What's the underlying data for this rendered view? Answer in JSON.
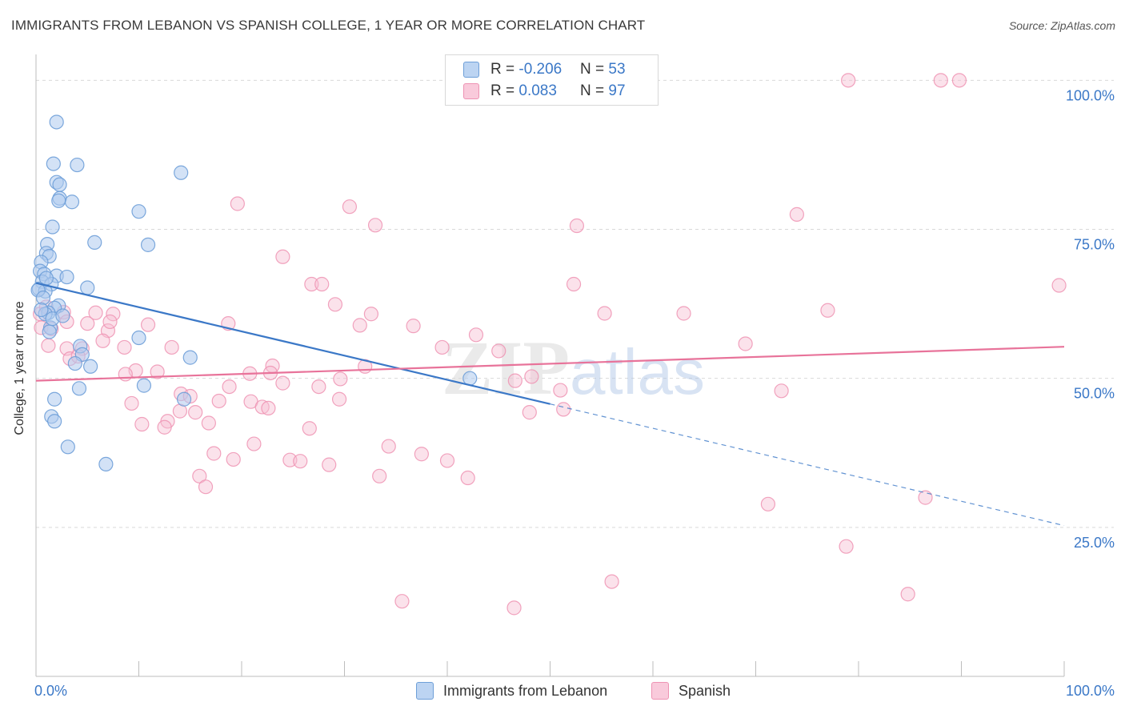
{
  "title": "IMMIGRANTS FROM LEBANON VS SPANISH COLLEGE, 1 YEAR OR MORE CORRELATION CHART",
  "source": "Source: ZipAtlas.com",
  "watermark": {
    "zip": "ZIP",
    "atlas": "atlas"
  },
  "colors": {
    "blue": "#3b78c7",
    "blue_fill": "#aecbef",
    "blue_stroke": "#6e9fd8",
    "pink": "#e8739a",
    "pink_fill": "#f6bfd2",
    "pink_stroke": "#ee93b3",
    "grid": "#d9d9d9",
    "axis_text": "#3b78c7"
  },
  "legend": {
    "rows": [
      {
        "r_label": "R = ",
        "r_value": "-0.206",
        "n_label": "N = ",
        "n_value": "53"
      },
      {
        "r_label": "R = ",
        "r_value": "0.083",
        "n_label": "N = ",
        "n_value": "97"
      }
    ]
  },
  "bottom_legend": [
    {
      "label": "Immigrants from Lebanon"
    },
    {
      "label": "Spanish"
    }
  ],
  "chart_data": {
    "type": "scatter",
    "title": "IMMIGRANTS FROM LEBANON VS SPANISH COLLEGE, 1 YEAR OR MORE CORRELATION CHART",
    "xlabel": "",
    "ylabel": "College, 1 year or more",
    "xlim": [
      0,
      100
    ],
    "ylim": [
      0,
      103
    ],
    "x_tick_labels": [
      "0.0%",
      "100.0%"
    ],
    "y_ticks": [
      25,
      50,
      75,
      100
    ],
    "y_tick_labels": [
      "25.0%",
      "50.0%",
      "75.0%",
      "100.0%"
    ],
    "grid": true,
    "series": [
      {
        "name": "Immigrants from Lebanon",
        "color": "#3b78c7",
        "r": -0.206,
        "n": 53,
        "trend": {
          "x0": 0,
          "y0": 66.0,
          "x1": 50,
          "y1": 45.7,
          "dashed_to_x": 100,
          "dashed_to_y": 25.3
        },
        "points": [
          [
            2.0,
            93.0
          ],
          [
            1.7,
            86.0
          ],
          [
            4.0,
            85.8
          ],
          [
            14.1,
            84.5
          ],
          [
            2.0,
            82.9
          ],
          [
            2.3,
            82.5
          ],
          [
            2.3,
            80.2
          ],
          [
            2.2,
            79.8
          ],
          [
            3.5,
            79.6
          ],
          [
            10.0,
            78.0
          ],
          [
            1.6,
            75.4
          ],
          [
            5.7,
            72.8
          ],
          [
            10.9,
            72.4
          ],
          [
            1.1,
            72.5
          ],
          [
            1.0,
            71.0
          ],
          [
            1.3,
            70.5
          ],
          [
            0.5,
            69.5
          ],
          [
            0.4,
            68.0
          ],
          [
            0.8,
            67.5
          ],
          [
            2.0,
            67.2
          ],
          [
            3.0,
            67.0
          ],
          [
            0.6,
            66.2
          ],
          [
            1.5,
            65.8
          ],
          [
            0.3,
            65.0
          ],
          [
            5.0,
            65.2
          ],
          [
            0.9,
            64.6
          ],
          [
            0.2,
            64.8
          ],
          [
            2.2,
            62.2
          ],
          [
            1.8,
            61.8
          ],
          [
            1.2,
            61.0
          ],
          [
            0.9,
            60.8
          ],
          [
            1.4,
            58.5
          ],
          [
            1.3,
            57.8
          ],
          [
            10.0,
            56.8
          ],
          [
            4.3,
            55.4
          ],
          [
            4.5,
            54.0
          ],
          [
            15.0,
            53.5
          ],
          [
            3.8,
            52.5
          ],
          [
            5.3,
            52.0
          ],
          [
            42.2,
            50.0
          ],
          [
            10.5,
            48.8
          ],
          [
            4.2,
            48.3
          ],
          [
            14.4,
            46.5
          ],
          [
            1.8,
            46.5
          ],
          [
            1.5,
            43.6
          ],
          [
            1.8,
            42.8
          ],
          [
            3.1,
            38.5
          ],
          [
            6.8,
            35.6
          ],
          [
            1.6,
            60.0
          ],
          [
            0.7,
            63.5
          ],
          [
            2.6,
            60.5
          ],
          [
            1.0,
            66.8
          ],
          [
            0.5,
            61.5
          ]
        ]
      },
      {
        "name": "Spanish",
        "color": "#e8739a",
        "r": 0.083,
        "n": 97,
        "trend": {
          "x0": 0,
          "y0": 49.6,
          "x1": 100,
          "y1": 55.3
        },
        "points": [
          [
            79.0,
            100.0
          ],
          [
            88.0,
            100.0
          ],
          [
            89.8,
            100.0
          ],
          [
            19.6,
            79.3
          ],
          [
            30.5,
            78.8
          ],
          [
            74.0,
            77.5
          ],
          [
            33.0,
            75.7
          ],
          [
            52.6,
            75.6
          ],
          [
            24.0,
            70.4
          ],
          [
            26.8,
            65.8
          ],
          [
            27.8,
            65.8
          ],
          [
            52.3,
            65.8
          ],
          [
            99.5,
            65.6
          ],
          [
            29.1,
            62.4
          ],
          [
            77.0,
            61.4
          ],
          [
            5.8,
            61.0
          ],
          [
            7.5,
            60.8
          ],
          [
            32.6,
            60.8
          ],
          [
            55.3,
            60.9
          ],
          [
            63.0,
            60.9
          ],
          [
            0.4,
            60.8
          ],
          [
            2.7,
            61.1
          ],
          [
            1.0,
            62.0
          ],
          [
            0.5,
            58.5
          ],
          [
            3.0,
            59.5
          ],
          [
            5.0,
            59.2
          ],
          [
            10.9,
            59.0
          ],
          [
            18.7,
            59.2
          ],
          [
            31.5,
            58.9
          ],
          [
            36.7,
            58.8
          ],
          [
            7.0,
            58.0
          ],
          [
            7.2,
            59.5
          ],
          [
            1.5,
            58.3
          ],
          [
            42.8,
            57.3
          ],
          [
            6.5,
            56.3
          ],
          [
            69.0,
            55.8
          ],
          [
            1.2,
            55.5
          ],
          [
            8.6,
            55.2
          ],
          [
            13.2,
            55.2
          ],
          [
            39.5,
            55.2
          ],
          [
            3.0,
            55.0
          ],
          [
            4.5,
            55.0
          ],
          [
            45.0,
            54.6
          ],
          [
            3.3,
            53.3
          ],
          [
            4.1,
            53.7
          ],
          [
            23.0,
            52.1
          ],
          [
            32.0,
            52.0
          ],
          [
            9.7,
            51.3
          ],
          [
            11.8,
            51.1
          ],
          [
            8.7,
            50.7
          ],
          [
            20.8,
            50.8
          ],
          [
            22.8,
            50.9
          ],
          [
            29.6,
            49.9
          ],
          [
            46.6,
            49.6
          ],
          [
            48.2,
            50.3
          ],
          [
            24.0,
            49.2
          ],
          [
            18.8,
            48.6
          ],
          [
            27.5,
            48.6
          ],
          [
            51.0,
            48.0
          ],
          [
            72.5,
            47.9
          ],
          [
            14.1,
            47.4
          ],
          [
            15.0,
            47.0
          ],
          [
            29.5,
            46.5
          ],
          [
            17.8,
            46.2
          ],
          [
            20.9,
            46.1
          ],
          [
            9.3,
            45.8
          ],
          [
            22.0,
            45.2
          ],
          [
            22.6,
            45.0
          ],
          [
            14.0,
            44.5
          ],
          [
            15.5,
            44.3
          ],
          [
            51.3,
            44.8
          ],
          [
            48.0,
            44.3
          ],
          [
            12.8,
            42.8
          ],
          [
            16.8,
            42.5
          ],
          [
            10.3,
            42.3
          ],
          [
            12.5,
            41.8
          ],
          [
            26.6,
            41.6
          ],
          [
            21.2,
            39.0
          ],
          [
            34.3,
            38.6
          ],
          [
            17.3,
            37.4
          ],
          [
            37.5,
            37.3
          ],
          [
            19.2,
            36.4
          ],
          [
            24.7,
            36.3
          ],
          [
            25.7,
            36.1
          ],
          [
            40.0,
            36.2
          ],
          [
            28.5,
            35.5
          ],
          [
            15.9,
            33.6
          ],
          [
            33.4,
            33.6
          ],
          [
            42.0,
            33.3
          ],
          [
            16.5,
            31.8
          ],
          [
            86.5,
            30.0
          ],
          [
            71.2,
            28.9
          ],
          [
            78.8,
            21.8
          ],
          [
            56.0,
            15.9
          ],
          [
            84.8,
            13.8
          ],
          [
            35.6,
            12.6
          ],
          [
            46.5,
            11.5
          ]
        ]
      }
    ]
  }
}
